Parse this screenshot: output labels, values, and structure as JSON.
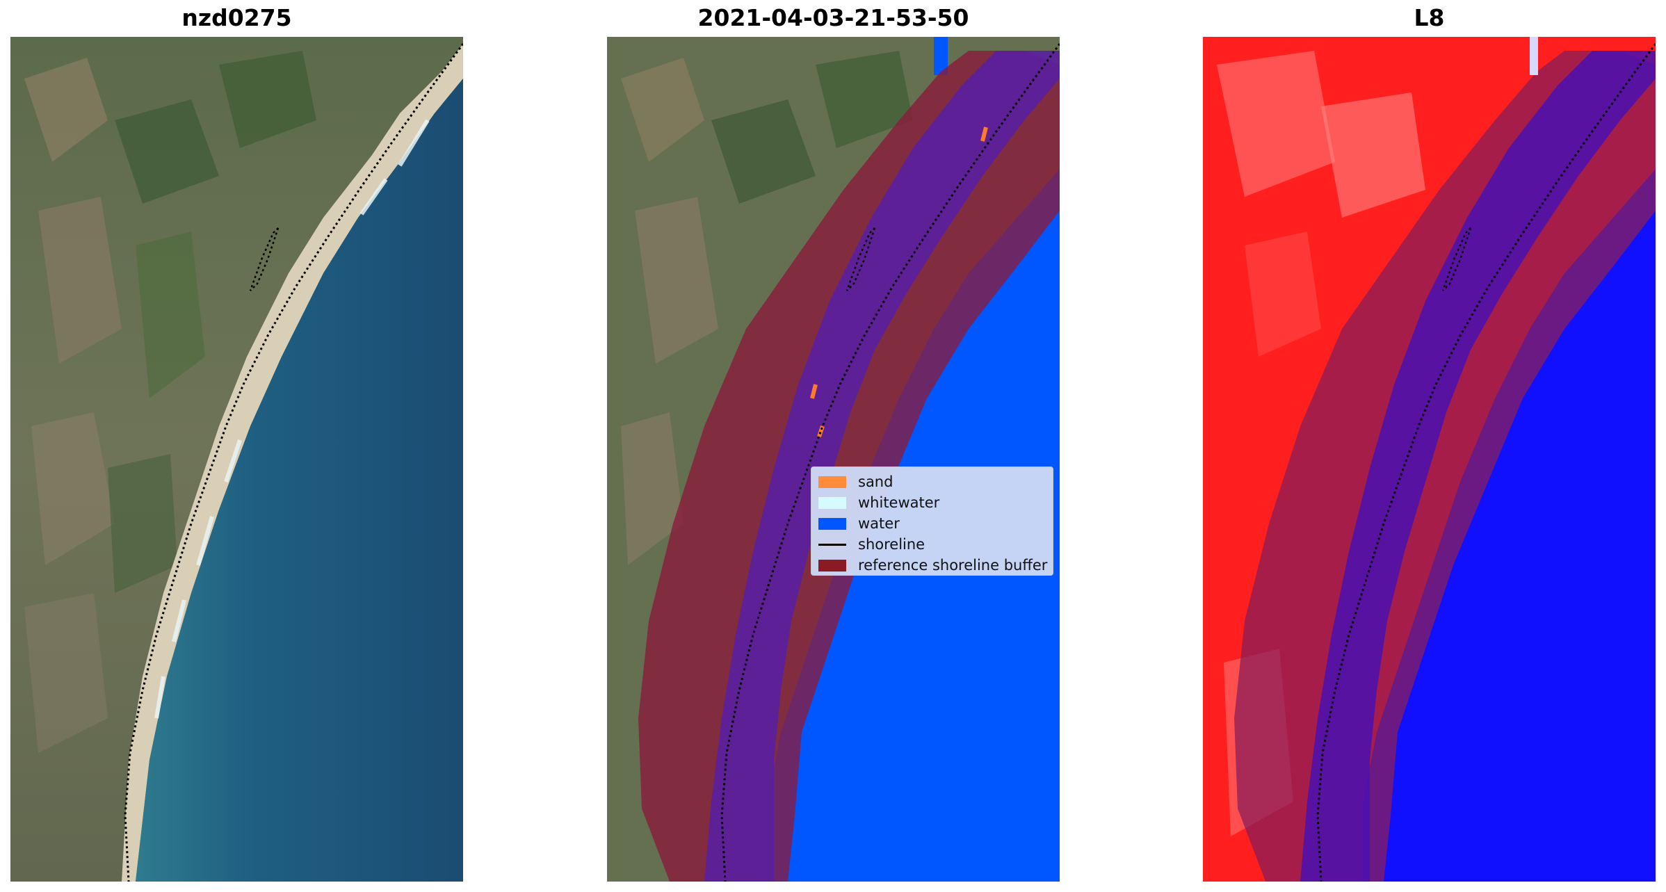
{
  "panels": [
    {
      "title": "nzd0275",
      "kind": "rgb"
    },
    {
      "title": "2021-04-03-21-53-50",
      "kind": "classified"
    },
    {
      "title": "L8",
      "kind": "index"
    }
  ],
  "legend": {
    "items": [
      {
        "label": "sand",
        "color": "#ff8c3a",
        "type": "patch"
      },
      {
        "label": "whitewater",
        "color": "#d6fbff",
        "type": "patch"
      },
      {
        "label": "water",
        "color": "#0057ff",
        "type": "patch"
      },
      {
        "label": "shoreline",
        "color": "#000000",
        "type": "line"
      },
      {
        "label": "reference shoreline buffer",
        "color": "#8b1a24",
        "type": "patch"
      }
    ]
  },
  "colors": {
    "ocean": "#1f5378",
    "land": "#6a735a",
    "sand": "#d8cdb5",
    "water_class": "#0057ff",
    "buffer": "#8b1a24",
    "index_land": "#ff2020",
    "index_water": "#1010ff"
  }
}
